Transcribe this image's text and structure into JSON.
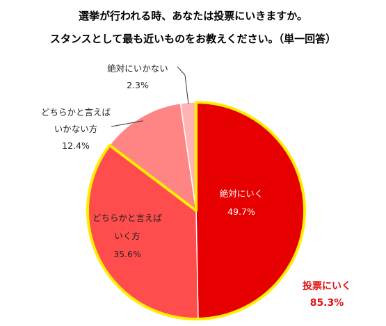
{
  "title": {
    "line1": "選挙が行われる時、あなたは投票にいきますか。",
    "line2": "スタンスとして最も近いものをお教えください。（単一回答）"
  },
  "colors": {
    "outline": "#ffee00",
    "background": "#ffffff"
  },
  "chart_data": {
    "type": "pie",
    "start": "12 o'clock",
    "direction": "clockwise",
    "slices": [
      {
        "label": "絶対にいく",
        "value": 49.7,
        "value_label": "49.7%",
        "color": "#e60000"
      },
      {
        "label": "どちらかと言えば\nいく方",
        "value": 35.6,
        "value_label": "35.6%",
        "color": "#ff4d4d"
      },
      {
        "label": "どちらかと言えば\nいかない方",
        "value": 12.4,
        "value_label": "12.4%",
        "color": "#ff8585"
      },
      {
        "label": "絶対にいかない",
        "value": 2.3,
        "value_label": "2.3%",
        "color": "#ffb3b3"
      }
    ],
    "summary": {
      "label": "投票にいく",
      "value": 85.3,
      "value_label": "85.3%"
    }
  }
}
